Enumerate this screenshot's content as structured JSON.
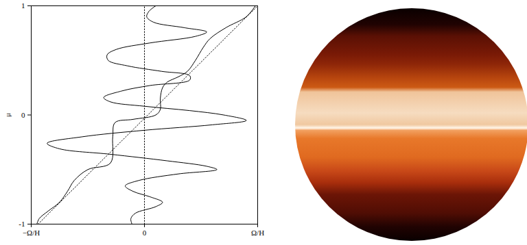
{
  "chart_data": {
    "type": "line",
    "y_label": "μ",
    "xlim": [
      -1,
      1
    ],
    "ylim": [
      -1,
      1
    ],
    "xticks": [
      {
        "value": -1,
        "label": "−Ω/H"
      },
      0,
      {
        "value": 1,
        "label": "Ω/H"
      }
    ],
    "yticks": [
      -1,
      0,
      1
    ],
    "grid": false,
    "series": [
      {
        "color": "#000000",
        "line_style": "solid",
        "y": [
          1.0,
          0.95,
          0.9,
          0.85,
          0.8,
          0.76,
          0.72,
          0.66,
          0.6,
          0.55,
          0.5,
          0.45,
          0.4,
          0.36,
          0.32,
          0.27,
          0.22,
          0.16,
          0.12,
          0.08,
          0.04,
          0.0,
          -0.05,
          -0.09,
          -0.14,
          -0.2,
          -0.26,
          -0.31,
          -0.36,
          -0.42,
          -0.47,
          -0.5,
          -0.54,
          -0.6,
          -0.65,
          -0.7,
          -0.75,
          -0.8,
          -0.84,
          -0.9,
          -0.95,
          -1.0
        ],
        "x": [
          0.1,
          0.04,
          0.02,
          0.08,
          0.35,
          0.55,
          0.45,
          0.05,
          -0.25,
          -0.33,
          -0.32,
          -0.15,
          0.15,
          0.4,
          0.4,
          0.05,
          -0.2,
          -0.36,
          -0.3,
          0.0,
          0.4,
          0.7,
          0.9,
          0.6,
          0.0,
          -0.55,
          -0.86,
          -0.75,
          -0.3,
          0.2,
          0.55,
          0.64,
          0.3,
          -0.05,
          -0.17,
          -0.1,
          0.05,
          0.16,
          0.1,
          -0.08,
          -0.12,
          -0.11
        ]
      },
      {
        "color": "#000000",
        "line_style": "solid",
        "y": [
          1.0,
          0.9,
          0.8,
          0.7,
          0.62,
          0.5,
          0.4,
          0.35,
          0.3,
          0.25,
          0.15,
          0.05,
          0.0,
          -0.04,
          -0.07,
          -0.2,
          -0.44,
          -0.5,
          -0.6,
          -0.7,
          -0.8,
          -0.88,
          -0.95,
          -1.0
        ],
        "x": [
          0.98,
          0.9,
          0.72,
          0.58,
          0.52,
          0.45,
          0.38,
          0.3,
          0.2,
          0.16,
          0.14,
          0.14,
          0.1,
          -0.1,
          -0.26,
          -0.28,
          -0.3,
          -0.5,
          -0.62,
          -0.68,
          -0.75,
          -0.85,
          -0.93,
          -0.95
        ]
      },
      {
        "color": "#000000",
        "line_style": "dotted",
        "y": [
          -1,
          1
        ],
        "x": [
          -0.94,
          1.0
        ]
      },
      {
        "color": "#000000",
        "line_style": "dotted",
        "y": [
          -1,
          1
        ],
        "x": [
          0,
          0
        ]
      }
    ]
  }
}
